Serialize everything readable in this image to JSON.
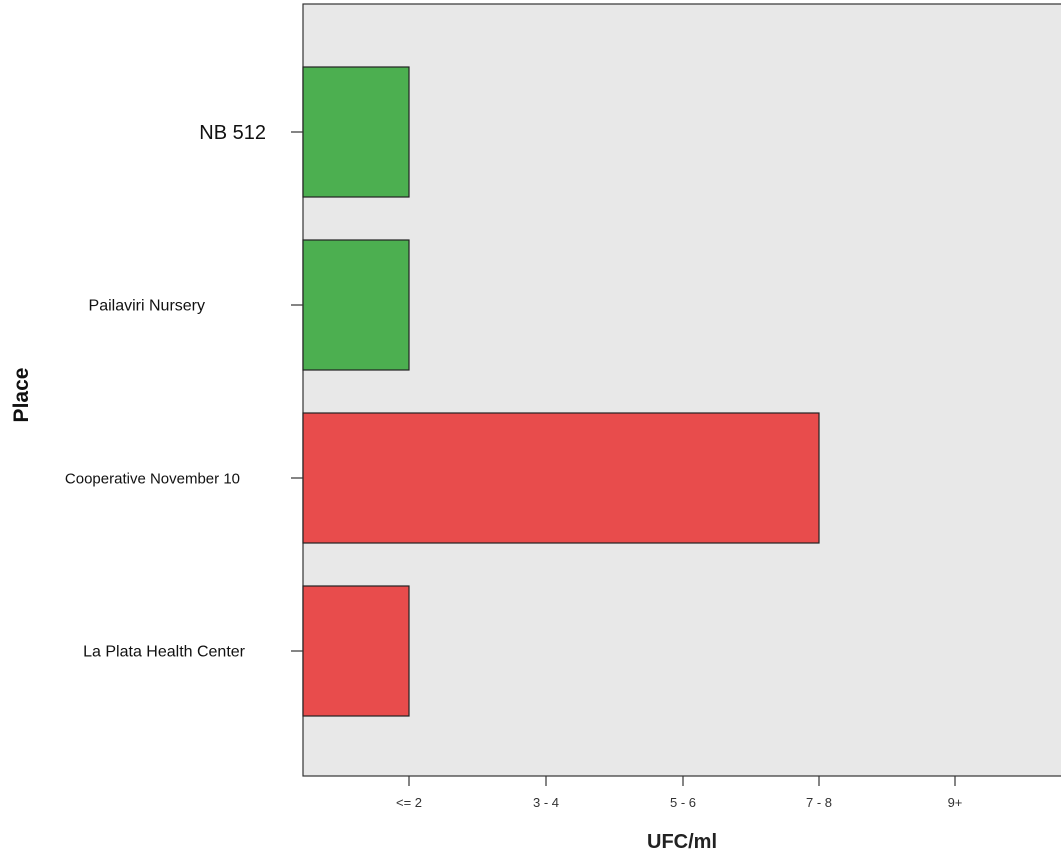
{
  "chart_data": {
    "type": "bar",
    "orientation": "horizontal",
    "xlabel": "UFC/ml",
    "ylabel": "Place",
    "x_tick_labels": [
      "<= 2",
      "3 - 4",
      "5 - 6",
      "7 - 8",
      "9+"
    ],
    "categories": [
      "NB 512",
      "Pailaviri Nursery",
      "Cooperative November 10",
      "La Plata Health Center"
    ],
    "values": [
      1,
      1,
      4,
      1
    ],
    "value_labels": [
      "<= 2",
      "<= 2",
      "7 - 8",
      "<= 2"
    ],
    "bar_colors": [
      "#4caf50",
      "#4caf50",
      "#e84c4c",
      "#e84c4c"
    ],
    "xlim": [
      0.2,
      5.8
    ],
    "grid": false,
    "legend": "none"
  },
  "colors": {
    "background": "#e8e8e8",
    "green": "#4caf50",
    "red": "#e84c4c"
  }
}
